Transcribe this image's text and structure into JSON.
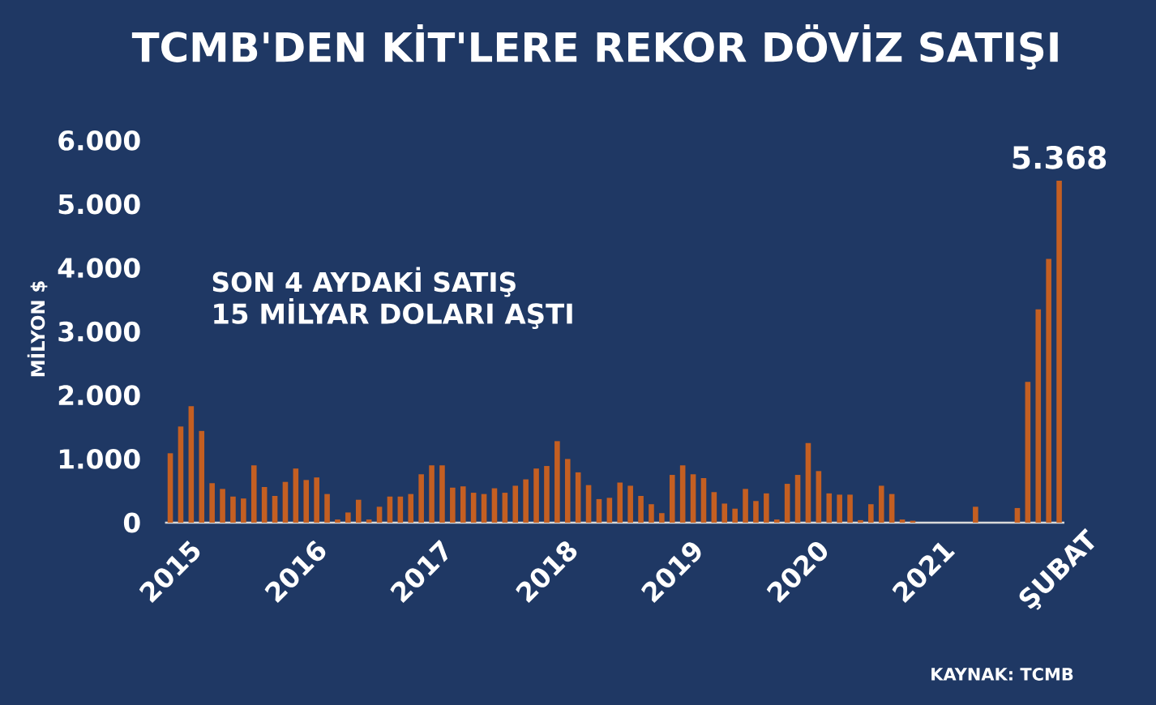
{
  "chart_data": {
    "type": "bar",
    "title": "TCMB'DEN KİT'LERE REKOR DÖVİZ SATIŞI",
    "ylabel": "MİLYON $",
    "categories": [
      "2015",
      null,
      null,
      null,
      null,
      null,
      null,
      null,
      null,
      null,
      null,
      null,
      "2016",
      null,
      null,
      null,
      null,
      null,
      null,
      null,
      null,
      null,
      null,
      null,
      "2017",
      null,
      null,
      null,
      null,
      null,
      null,
      null,
      null,
      null,
      null,
      null,
      "2018",
      null,
      null,
      null,
      null,
      null,
      null,
      null,
      null,
      null,
      null,
      null,
      "2019",
      null,
      null,
      null,
      null,
      null,
      null,
      null,
      null,
      null,
      null,
      null,
      "2020",
      null,
      null,
      null,
      null,
      null,
      null,
      null,
      null,
      null,
      null,
      null,
      "2021",
      null,
      null,
      null,
      null,
      null,
      null,
      null,
      null,
      null,
      null,
      null,
      null,
      "ŞUBAT"
    ],
    "values": [
      1090,
      1510,
      1830,
      1440,
      620,
      530,
      410,
      380,
      900,
      560,
      420,
      640,
      850,
      670,
      710,
      450,
      50,
      160,
      360,
      50,
      250,
      410,
      410,
      450,
      760,
      900,
      900,
      550,
      570,
      470,
      450,
      540,
      470,
      580,
      680,
      850,
      890,
      1280,
      1000,
      790,
      590,
      370,
      390,
      630,
      580,
      420,
      290,
      150,
      750,
      900,
      760,
      700,
      480,
      300,
      220,
      530,
      340,
      460,
      50,
      610,
      750,
      1250,
      810,
      460,
      440,
      440,
      40,
      290,
      580,
      450,
      50,
      30,
      0,
      0,
      0,
      0,
      0,
      250,
      0,
      0,
      0,
      230,
      2210,
      3350,
      4140,
      5368
    ],
    "value_labels": [
      null,
      null,
      null,
      null,
      null,
      null,
      null,
      null,
      null,
      null,
      null,
      null,
      null,
      null,
      null,
      null,
      null,
      null,
      null,
      null,
      null,
      null,
      null,
      null,
      null,
      null,
      null,
      null,
      null,
      null,
      null,
      null,
      null,
      null,
      null,
      null,
      null,
      null,
      null,
      null,
      null,
      null,
      null,
      null,
      null,
      null,
      null,
      null,
      null,
      null,
      null,
      null,
      null,
      null,
      null,
      null,
      null,
      null,
      null,
      null,
      null,
      null,
      null,
      null,
      null,
      null,
      null,
      null,
      null,
      null,
      null,
      null,
      null,
      null,
      null,
      null,
      null,
      null,
      null,
      null,
      null,
      null,
      null,
      null,
      null,
      "5.368"
    ],
    "color": "#c45f22",
    "ylim": [
      0,
      6000
    ],
    "yticks": [
      0,
      {
        "value": 1000,
        "label": "1.000"
      },
      {
        "value": 2000,
        "label": "2.000"
      },
      {
        "value": 3000,
        "label": "3.000"
      },
      {
        "value": 4000,
        "label": "4.000"
      },
      {
        "value": 5000,
        "label": "5.000"
      },
      {
        "value": 6000,
        "label": "6.000"
      }
    ],
    "annotations": [
      "SON 4 AYDAKİ SATIŞ",
      "15 MİLYAR DOLARI AŞTI",
      "KAYNAK:  TCMB"
    ]
  }
}
